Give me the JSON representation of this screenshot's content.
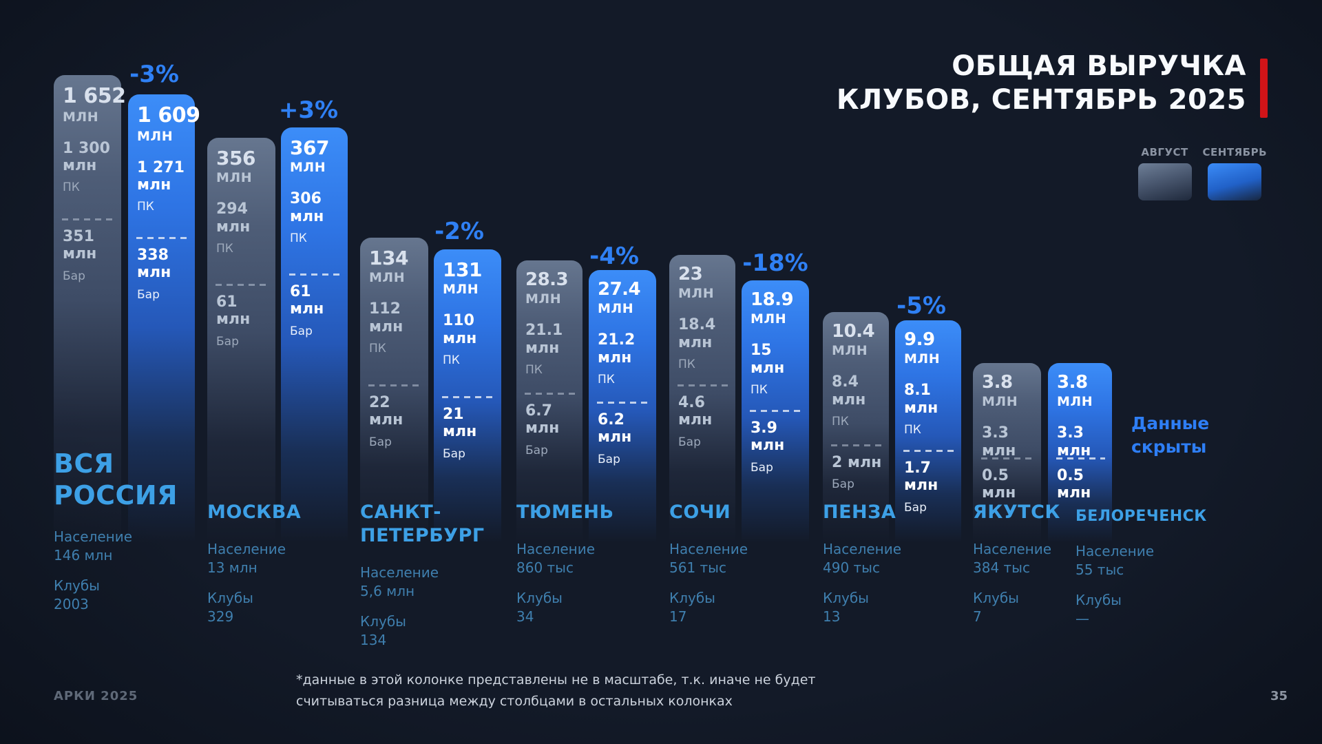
{
  "title": {
    "line1": "ОБЩАЯ ВЫРУЧКА",
    "line2": "КЛУБОВ, СЕНТЯБРЬ 2025"
  },
  "legend": {
    "august": "АВГУСТ",
    "september": "СЕНТЯБРЬ"
  },
  "hidden_note": "Данные\nскрыты",
  "footnote": "*данные в этой колонке представлены не в масштабе, т.к. иначе не будет\nсчитываться разница между столбцами в остальных колонках",
  "footer": {
    "brand": "АРКИ 2025",
    "page": "35"
  },
  "colors": {
    "background": "#131a28",
    "accent_percent_blue": "#2f80f4",
    "city_name_blue": "#3da0e6",
    "info_text_blue": "#3f7fae",
    "august_bar_top": "#66768f",
    "september_bar_top": "#3c8df8",
    "title_red_accent": "#d01418"
  },
  "chart_data": {
    "type": "bar",
    "title": "ОБЩАЯ ВЫРУЧКА КЛУБОВ, СЕНТЯБРЬ 2025",
    "series": [
      "АВГУСТ",
      "СЕНТЯБРЬ"
    ],
    "value_unit": "млн",
    "segment_labels": {
      "pk": "ПК",
      "bar": "Бар"
    },
    "groups": [
      {
        "city": "ВСЯ\nРОССИЯ",
        "population_label": "Население",
        "population_value": "146 млн",
        "clubs_label": "Клубы",
        "clubs_value": "2003",
        "change": "-3%",
        "august": {
          "total": 1652,
          "pk": 1300,
          "bar": 351,
          "total_display": "1 652",
          "unit": "МЛН",
          "pk_value": "1 300\nмлн",
          "pk_label": "ПК",
          "bar_value": "351\nмлн",
          "bar_label": "Бар"
        },
        "september": {
          "total": 1609,
          "pk": 1271,
          "bar": 338,
          "total_display": "1 609",
          "unit": "МЛН",
          "pk_value": "1 271\nмлн",
          "pk_label": "ПК",
          "bar_value": "338\nмлн",
          "bar_label": "Бар"
        }
      },
      {
        "city": "МОСКВА",
        "population_label": "Население",
        "population_value": "13 млн",
        "clubs_label": "Клубы",
        "clubs_value": "329",
        "change": "+3%",
        "august": {
          "total": 356,
          "pk": 294,
          "bar": 61,
          "total_display": "356",
          "unit": "МЛН",
          "pk_value": "294\nмлн",
          "pk_label": "ПК",
          "bar_value": "61 млн",
          "bar_label": "Бар"
        },
        "september": {
          "total": 367,
          "pk": 306,
          "bar": 61,
          "total_display": "367",
          "unit": "МЛН",
          "pk_value": "306\nмлн",
          "pk_label": "ПК",
          "bar_value": "61 млн",
          "bar_label": "Бар"
        }
      },
      {
        "city": "САНКТ-\nПЕТЕРБУРГ",
        "population_label": "Население",
        "population_value": "5,6 млн",
        "clubs_label": "Клубы",
        "clubs_value": "134",
        "change": "-2%",
        "august": {
          "total": 134,
          "pk": 112,
          "bar": 22,
          "total_display": "134",
          "unit": "МЛН",
          "pk_value": "112 млн",
          "pk_label": "ПК",
          "bar_value": "22 млн",
          "bar_label": "Бар"
        },
        "september": {
          "total": 131,
          "pk": 110,
          "bar": 21,
          "total_display": "131",
          "unit": "МЛН",
          "pk_value": "110 млн",
          "pk_label": "ПК",
          "bar_value": "21 млн",
          "bar_label": "Бар"
        }
      },
      {
        "city": "ТЮМЕНЬ",
        "population_label": "Население",
        "population_value": "860 тыс",
        "clubs_label": "Клубы",
        "clubs_value": "34",
        "change": "-4%",
        "august": {
          "total": 28.3,
          "pk": 21.1,
          "bar": 6.7,
          "total_display": "28.3",
          "unit": "МЛН",
          "pk_value": "21.1\nмлн",
          "pk_label": "ПК",
          "bar_value": "6.7 млн",
          "bar_label": "Бар"
        },
        "september": {
          "total": 27.4,
          "pk": 21.2,
          "bar": 6.2,
          "total_display": "27.4",
          "unit": "МЛН",
          "pk_value": "21.2\nмлн",
          "pk_label": "ПК",
          "bar_value": "6.2 млн",
          "bar_label": "Бар"
        }
      },
      {
        "city": "СОЧИ",
        "population_label": "Население",
        "population_value": "561 тыс",
        "clubs_label": "Клубы",
        "clubs_value": "17",
        "change": "-18%",
        "august": {
          "total": 23,
          "pk": 18.4,
          "bar": 4.6,
          "total_display": "23",
          "unit": "МЛН",
          "pk_value": "18.4\nмлн",
          "pk_label": "ПК",
          "bar_value": "4.6\nмлн",
          "bar_label": "Бар"
        },
        "september": {
          "total": 18.9,
          "pk": 15,
          "bar": 3.9,
          "total_display": "18.9",
          "unit": "МЛН",
          "pk_value": "15\nмлн",
          "pk_label": "ПК",
          "bar_value": "3.9\nмлн",
          "bar_label": "Бар"
        }
      },
      {
        "city": "ПЕНЗА",
        "population_label": "Население",
        "population_value": "490 тыс",
        "clubs_label": "Клубы",
        "clubs_value": "13",
        "change": "-5%",
        "august": {
          "total": 10.4,
          "pk": 8.4,
          "bar": 2,
          "total_display": "10.4",
          "unit": "МЛН",
          "pk_value": "8.4 млн",
          "pk_label": "ПК",
          "bar_value": "2 млн",
          "bar_label": "Бар"
        },
        "september": {
          "total": 9.9,
          "pk": 8.1,
          "bar": 1.7,
          "total_display": "9.9",
          "unit": "МЛН",
          "pk_value": "8.1 млн",
          "pk_label": "ПК",
          "bar_value": "1.7 млн",
          "bar_label": "Бар"
        }
      },
      {
        "city": "ЯКУТСК",
        "population_label": "Население",
        "population_value": "384 тыс",
        "clubs_label": "Клубы",
        "clubs_value": "7",
        "change": null,
        "august": {
          "total": 3.8,
          "pk": 3.3,
          "bar": 0.5,
          "total_display": "3.8",
          "unit": "МЛН",
          "pk_value": "3.3 млн",
          "pk_label": "",
          "bar_value": "0.5 млн",
          "bar_label": ""
        },
        "september": {
          "total": 3.8,
          "pk": 3.3,
          "bar": 0.5,
          "total_display": "3.8",
          "unit": "МЛН",
          "pk_value": "3.3 млн",
          "pk_label": "",
          "bar_value": "0.5 млн",
          "bar_label": ""
        }
      },
      {
        "city": "БЕЛОРЕЧЕНСК",
        "population_label": "Население",
        "population_value": "55 тыс",
        "clubs_label": "Клубы",
        "clubs_value": "—",
        "change": null,
        "hidden": true
      }
    ]
  }
}
